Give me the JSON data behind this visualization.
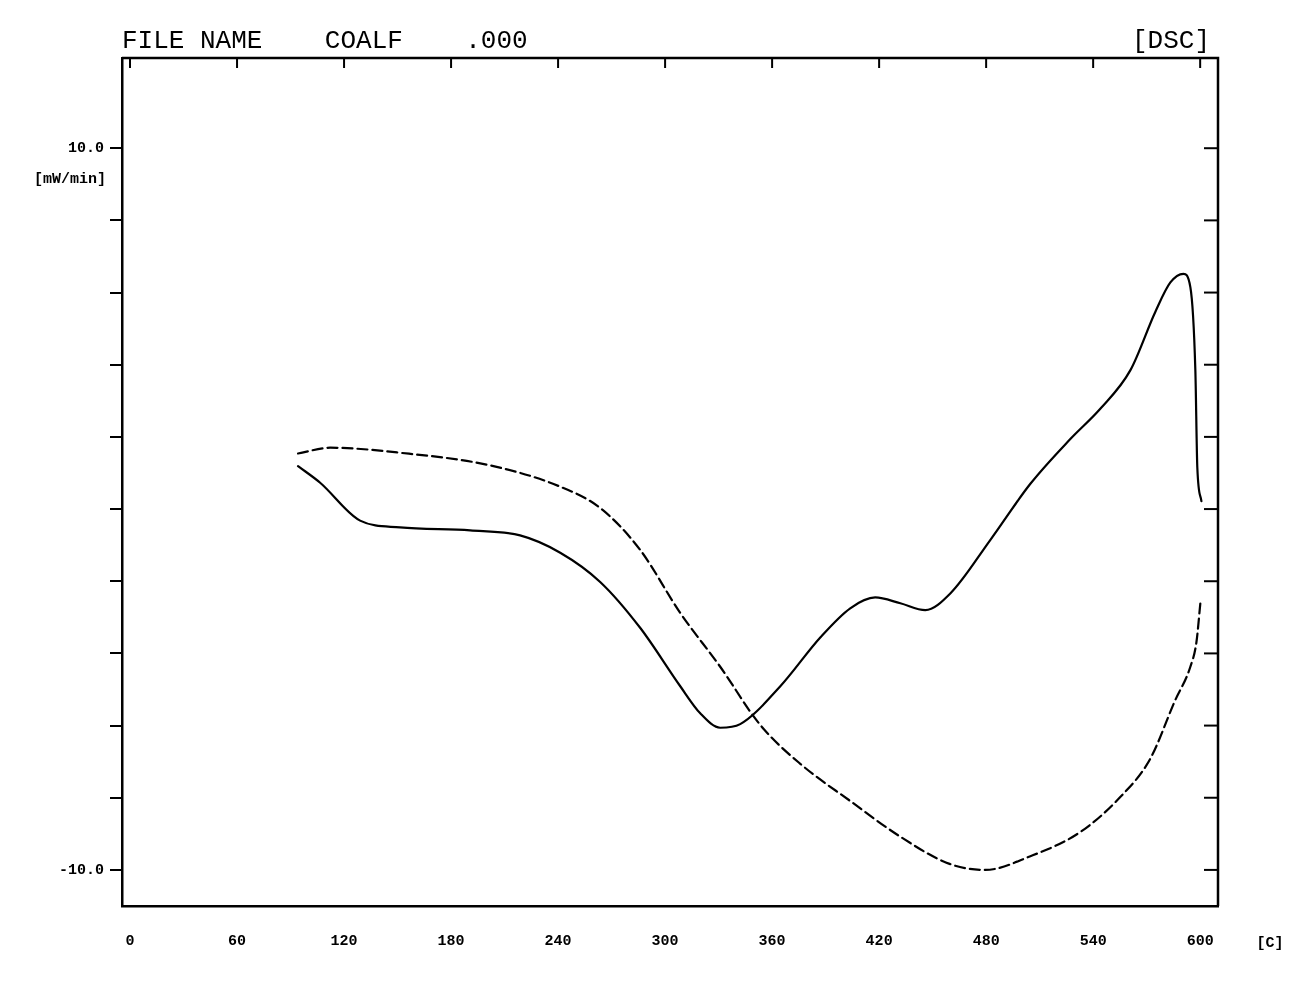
{
  "chart_data": {
    "type": "line",
    "title": "FILE NAME    COALF    .000",
    "annotations": [
      "[DSC]"
    ],
    "xlabel": "[C]",
    "ylabel": "[mW/min]",
    "xlim": [
      -4.5,
      610
    ],
    "xticks": [
      0,
      60,
      120,
      180,
      240,
      300,
      360,
      420,
      480,
      540,
      600
    ],
    "ylim": [
      -11,
      12.5
    ],
    "yticks": [
      {
        "value": -10,
        "label": "-10.0"
      },
      {
        "value": -8,
        "label": null
      },
      {
        "value": -6,
        "label": null
      },
      {
        "value": -4,
        "label": null
      },
      {
        "value": -2,
        "label": null
      },
      {
        "value": 0,
        "label": null
      },
      {
        "value": 2,
        "label": null
      },
      {
        "value": 4,
        "label": null
      },
      {
        "value": 6,
        "label": null
      },
      {
        "value": 8,
        "label": null
      },
      {
        "value": 10,
        "label": "10.0"
      }
    ],
    "grid": false,
    "legend": false,
    "marker": "none",
    "series": [
      {
        "color": "#000000",
        "line_style": "solid",
        "x": [
          94.2,
          106.6,
          129,
          151.4,
          190.7,
          218.7,
          241.2,
          263.6,
          286,
          308.5,
          319.7,
          330.9,
          342.1,
          364.6,
          387,
          403.8,
          417.8,
          431.9,
          445.9,
          459.9,
          482.3,
          504.8,
          527.2,
          544,
          560.9,
          574.9,
          583.3,
          590.6,
          594.5,
          597.3,
          598.4,
          600.7
        ],
        "values": [
          1.19,
          0.73,
          -0.32,
          -0.51,
          -0.59,
          -0.73,
          -1.21,
          -2.02,
          -3.29,
          -4.91,
          -5.66,
          -6.06,
          -5.96,
          -4.91,
          -3.56,
          -2.75,
          -2.45,
          -2.61,
          -2.8,
          -2.34,
          -0.86,
          0.7,
          1.94,
          2.78,
          3.85,
          5.47,
          6.28,
          6.52,
          6.15,
          3.85,
          1.16,
          0.22
        ]
      },
      {
        "color": "#000000",
        "line_style": "dashed",
        "x": [
          94.2,
          112.2,
          151.4,
          201.9,
          241.2,
          263.6,
          286,
          308.5,
          330.9,
          353.3,
          375.8,
          403.8,
          431.9,
          459.9,
          479.5,
          504.8,
          532.8,
          554.8,
          571.9,
          585.9,
          594.5,
          597.9,
          600.1
        ],
        "values": [
          1.54,
          1.7,
          1.56,
          1.21,
          0.62,
          0.03,
          -1.13,
          -2.88,
          -4.37,
          -5.98,
          -7.06,
          -8.09,
          -9.08,
          -9.84,
          -10.0,
          -9.62,
          -8.95,
          -8,
          -6.93,
          -5.31,
          -4.37,
          -3.69,
          -2.61
        ]
      }
    ]
  }
}
